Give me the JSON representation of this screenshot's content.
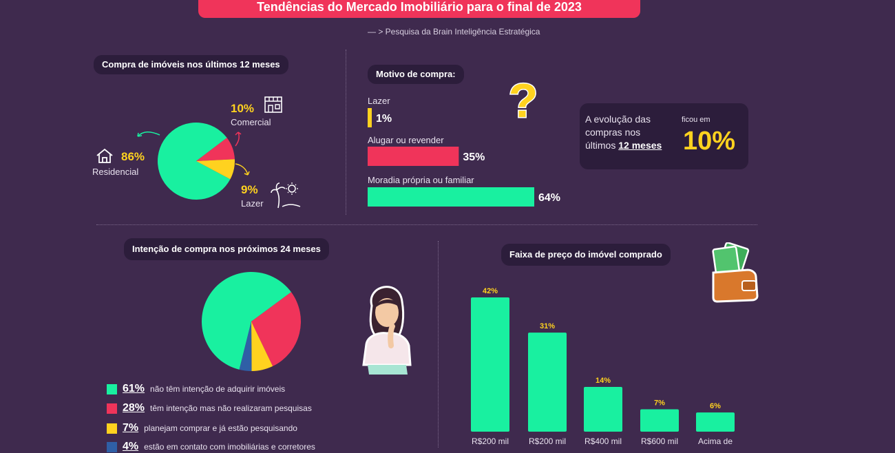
{
  "header": {
    "title": "Tendências do Mercado Imobiliário para o final de 2023",
    "subtitle": "— > Pesquisa da Brain Inteligência Estratégica"
  },
  "section_purchase": {
    "heading": "Compra de imóveis nos últimos 12 meses",
    "residencial_pct": "86%",
    "residencial_label": "Residencial",
    "comercial_pct": "10%",
    "comercial_label": "Comercial",
    "lazer_pct": "9%",
    "lazer_label": "Lazer"
  },
  "section_motive": {
    "heading": "Motivo de compra:",
    "items": [
      {
        "label": "Lazer",
        "pct": "1%"
      },
      {
        "label": "Alugar ou revender",
        "pct": "35%"
      },
      {
        "label": "Moradia própria ou familiar",
        "pct": "64%"
      }
    ]
  },
  "evolution": {
    "line1": "A evolução das",
    "line2": "compras nos",
    "line3_prefix": "últimos",
    "line3_bold": "12 meses",
    "ficou": "ficou em",
    "value": "10%"
  },
  "section_intention": {
    "heading": "Intenção de compra nos próximos 24 meses",
    "legend": [
      {
        "pct": "61%",
        "text": "não têm intenção de adquirir imóveis"
      },
      {
        "pct": "28%",
        "text": "têm intenção mas não realizaram pesquisas"
      },
      {
        "pct": "7%",
        "text": "planejam comprar e já estão pesquisando"
      },
      {
        "pct": "4%",
        "text": "estão em contato com imobiliárias e corretores"
      }
    ]
  },
  "section_price": {
    "heading": "Faixa de preço do imóvel comprado"
  },
  "colors": {
    "green": "#19f0a0",
    "red": "#f0345a",
    "yellow": "#ffd21f",
    "blue": "#2f5fa6",
    "background": "#3f2a4e",
    "panel": "#2c1d3b"
  },
  "chart_data": [
    {
      "type": "pie",
      "title": "Compra de imóveis nos últimos 12 meses",
      "categories": [
        "Residencial",
        "Comercial",
        "Lazer"
      ],
      "values": [
        86,
        10,
        9
      ]
    },
    {
      "type": "bar",
      "title": "Motivo de compra:",
      "categories": [
        "Lazer",
        "Alugar ou revender",
        "Moradia própria ou familiar"
      ],
      "values": [
        1,
        35,
        64
      ]
    },
    {
      "type": "pie",
      "title": "Intenção de compra nos próximos 24 meses",
      "categories": [
        "não têm intenção de adquirir imóveis",
        "têm intenção mas não realizaram pesquisas",
        "planejam comprar e já estão pesquisando",
        "estão em contato com imobiliárias e corretores"
      ],
      "values": [
        61,
        28,
        7,
        4
      ]
    },
    {
      "type": "bar",
      "title": "Faixa de preço do imóvel comprado",
      "categories": [
        "R$200 mil",
        "R$200 mil",
        "R$400 mil",
        "R$600 mil",
        "Acima de"
      ],
      "values": [
        42,
        31,
        14,
        7,
        6
      ],
      "value_labels": [
        "42%",
        "31%",
        "14%",
        "7%",
        "6%"
      ]
    }
  ]
}
